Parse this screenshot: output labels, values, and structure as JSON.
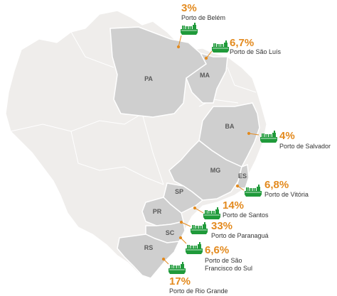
{
  "colors": {
    "background_land": "#efedeb",
    "highlight_state": "#cfcfcf",
    "state_border": "#ffffff",
    "percent_text": "#e38a1e",
    "leader_line": "#e38a1e",
    "ship_icon": "#1f9a3a"
  },
  "states": {
    "pa": "PA",
    "ma": "MA",
    "ba": "BA",
    "mg": "MG",
    "es": "ES",
    "sp": "SP",
    "pr": "PR",
    "sc": "SC",
    "rs": "RS"
  },
  "ports": {
    "belem": {
      "percent": "3%",
      "name": "Porto de Belém",
      "icon": "cargo-ship-icon"
    },
    "sao_luis": {
      "percent": "6,7%",
      "name": "Porto de São Luís",
      "icon": "cargo-ship-icon"
    },
    "salvador": {
      "percent": "4%",
      "name": "Porto de Salvador",
      "icon": "cargo-ship-icon"
    },
    "vitoria": {
      "percent": "6,8%",
      "name": "Porto de Vitória",
      "icon": "cargo-ship-icon"
    },
    "santos": {
      "percent": "14%",
      "name": "Porto de Santos",
      "icon": "cargo-ship-icon"
    },
    "paranagua": {
      "percent": "33%",
      "name": "Porto de Paranaguá",
      "icon": "cargo-ship-icon"
    },
    "sao_francisco": {
      "percent": "6,6%",
      "name_line1": "Porto de São",
      "name_line2": "Francisco do Sul",
      "icon": "cargo-ship-icon"
    },
    "rio_grande": {
      "percent": "17%",
      "name": "Porto de Rio Grande",
      "icon": "cargo-ship-icon"
    }
  }
}
